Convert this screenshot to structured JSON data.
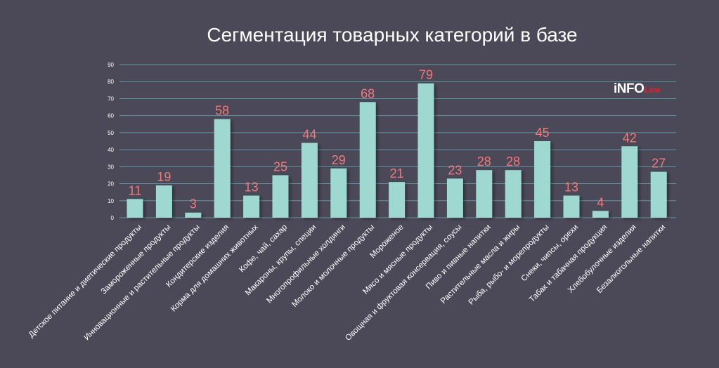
{
  "chart_data": {
    "type": "bar",
    "title": "Сегментация товарных категорий в базе",
    "categories": [
      "Детское питание и диетические продукты",
      "Замороженные продукты",
      "Инновационные и растительные продукты",
      "Кондитерские изделия",
      "Корма для домашних животных",
      "Кофе, чай, сахар",
      "Макароны, крупы, специи",
      "Многопрофильные холдинги",
      "Молоко и молочные продукты",
      "Мороженое",
      "Мясо и мясные продукты",
      "Овощная и фруктовая консервация, соусы",
      "Пиво и пивные напитки",
      "Растительные масла и жиры",
      "Рыба, рыбо- и морепродукты",
      "Снеки, чипсы, орехи",
      "Табак и табачная продукция",
      "Хлебобулочные изделия",
      "Безалкогольные напитки"
    ],
    "values": [
      11,
      19,
      3,
      58,
      13,
      25,
      44,
      29,
      68,
      21,
      79,
      23,
      28,
      28,
      45,
      13,
      4,
      42,
      27
    ],
    "value_labels": [
      "11",
      "19",
      "3",
      "58",
      "13",
      "25",
      "44",
      "29",
      "68",
      "21",
      "79",
      "23",
      "28",
      "28",
      "45",
      "13",
      "4",
      "42",
      "27"
    ],
    "ylim": [
      0,
      90
    ],
    "yticks": [
      0,
      10,
      20,
      30,
      40,
      50,
      60,
      70,
      80,
      90
    ],
    "ytick_labels": [
      "0",
      "10",
      "20",
      "30",
      "40",
      "50",
      "60",
      "70",
      "80",
      "90"
    ],
    "grid": true,
    "legend": "none",
    "colors": {
      "bar": "#9fd8d1",
      "value_label": "#f2787a",
      "grid": "#5e96a6",
      "text": "#ffffff",
      "background": "#4b4858"
    }
  },
  "logo": {
    "main": "iNFO",
    "accent": "Line"
  }
}
